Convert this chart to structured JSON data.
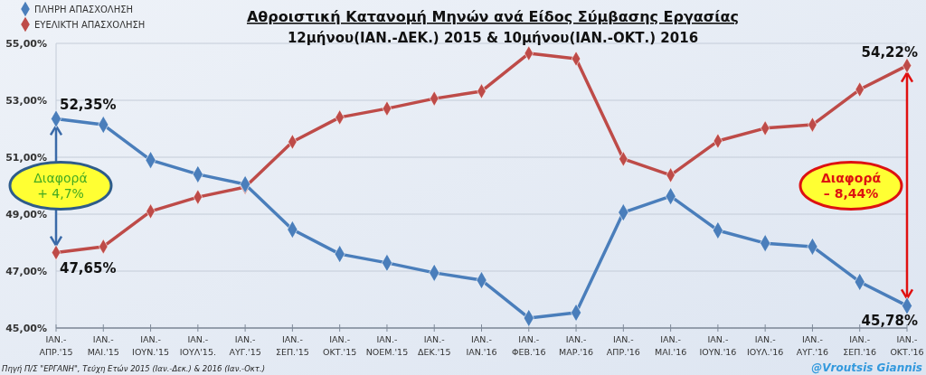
{
  "chart_data": {
    "type": "line",
    "title": "Αθροιστική Κατανομή Μηνών ανά Είδος Σύμβασης Εργασίας",
    "subtitle": "12μήνου(ΙΑΝ.-ΔΕΚ.) 2015 & 10μήνου(ΙΑΝ.-ΟΚΤ.) 2016",
    "categories": [
      "ΙΑΝ.-\nΑΠΡ.'15",
      "ΙΑΝ.-\nΜΑΙ.'15",
      "ΙΑΝ.-\nΙΟΥΝ.'15",
      "ΙΑΝ.-\nΙΟΥΛ'15.",
      "ΙΑΝ.-\nΑΥΓ.'15",
      "ΙΑΝ.-\nΣΕΠ.'15",
      "ΙΑΝ.-\nΟΚΤ.'15",
      "ΙΑΝ.-\nΝΟΕΜ.'15",
      "ΙΑΝ.-\nΔΕΚ.'15",
      "ΙΑΝ.-\nΙΑΝ.'16",
      "ΙΑΝ.-\nΦΕΒ.'16",
      "ΙΑΝ.-\nΜΑΡ.'16",
      "ΙΑΝ.-\nΑΠΡ.'16",
      "ΙΑΝ.-\nΜΑΙ.'16",
      "ΙΑΝ.-\nΙΟΥΝ.'16",
      "ΙΑΝ.-\nΙΟΥΛ.'16",
      "ΙΑΝ.-\nΑΥΓ.'16",
      "ΙΑΝ.-\nΣΕΠ.'16",
      "ΙΑΝ.-\nΟΚΤ.'16"
    ],
    "series": [
      {
        "name": "ΠΛΗΡΗ ΑΠΑΣΧΟΛΗΣΗ",
        "color": "#4a7ebb",
        "values": [
          52.35,
          52.14,
          50.9,
          50.4,
          50.05,
          48.46,
          47.6,
          47.29,
          46.94,
          46.68,
          45.35,
          45.54,
          49.06,
          49.63,
          48.43,
          47.98,
          47.86,
          46.62,
          45.78
        ],
        "value_labels": [
          "52,35%",
          null,
          null,
          null,
          null,
          null,
          null,
          null,
          null,
          null,
          null,
          null,
          null,
          null,
          null,
          null,
          null,
          null,
          "45,78%"
        ]
      },
      {
        "name": "ΕΥΕΛΙΚΤΗ ΑΠΑΣΧΟΛΗΣΗ",
        "color": "#be4b48",
        "values": [
          47.65,
          47.86,
          49.1,
          49.6,
          49.95,
          51.54,
          52.4,
          52.71,
          53.06,
          53.32,
          54.65,
          54.46,
          50.94,
          50.37,
          51.57,
          52.02,
          52.14,
          53.38,
          54.22
        ],
        "value_labels": [
          "47,65%",
          null,
          null,
          null,
          null,
          null,
          null,
          null,
          null,
          null,
          null,
          null,
          null,
          null,
          null,
          null,
          null,
          null,
          "54,22%"
        ]
      }
    ],
    "ylim": [
      45,
      55
    ],
    "yticks": [
      {
        "value": 45,
        "label": "45,00%"
      },
      {
        "value": 47,
        "label": "47,00%"
      },
      {
        "value": 49,
        "label": "49,00%"
      },
      {
        "value": 51,
        "label": "51,00%"
      },
      {
        "value": 53,
        "label": "53,00%"
      },
      {
        "value": 55,
        "label": "55,00%"
      }
    ],
    "grid": "y",
    "legend": "top left",
    "marker": "diamond",
    "line_style": "solid",
    "annotations": [
      "Διαφορά\n+ 4,7%",
      "Διαφορά\n– 8,44%",
      "Πηγή  Π/Σ \"ΕΡΓΑΝΗ\", Τεύχη Ετών 2015 (Ιαν.-Δεκ.) & 2016 (Ιαν.-Οκτ.)",
      "@Vroutsis Giannis"
    ]
  }
}
